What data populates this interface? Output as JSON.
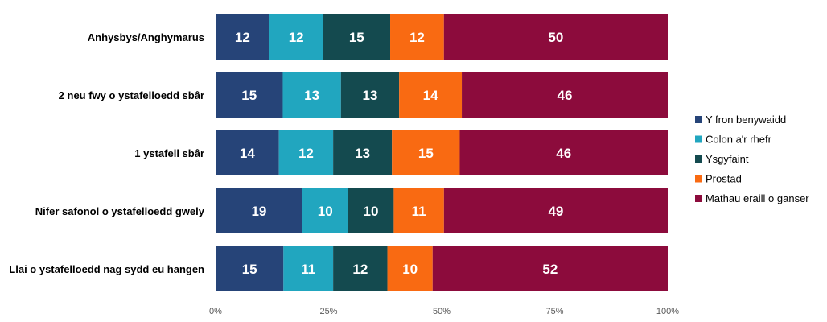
{
  "chart_data": {
    "type": "bar",
    "orientation": "horizontal",
    "stacked": "percent",
    "categories": [
      "Anhysbys/Anghymarus",
      "2 neu fwy o ystafelloedd sbâr",
      "1 ystafell sbâr",
      "Nifer safonol o ystafelloedd gwely",
      "Llai o ystafelloedd nag sydd eu hangen"
    ],
    "series": [
      {
        "name": "Y fron benywaidd",
        "color": "#264478",
        "values": [
          12,
          15,
          14,
          19,
          15
        ]
      },
      {
        "name": "Colon a'r rhefr",
        "color": "#21A6BF",
        "values": [
          12,
          13,
          12,
          10,
          11
        ]
      },
      {
        "name": "Ysgyfaint",
        "color": "#144A4F",
        "values": [
          15,
          13,
          13,
          10,
          12
        ]
      },
      {
        "name": "Prostad",
        "color": "#F96A12",
        "values": [
          12,
          14,
          15,
          11,
          10
        ]
      },
      {
        "name": "Mathau eraill o ganser",
        "color": "#8C0B3C",
        "values": [
          50,
          46,
          46,
          49,
          52
        ]
      }
    ],
    "x_ticks": [
      "0%",
      "25%",
      "50%",
      "75%",
      "100%"
    ],
    "xlim": [
      0,
      100
    ],
    "grid": false,
    "legend_position": "right",
    "title": "",
    "xlabel": "",
    "ylabel": ""
  }
}
